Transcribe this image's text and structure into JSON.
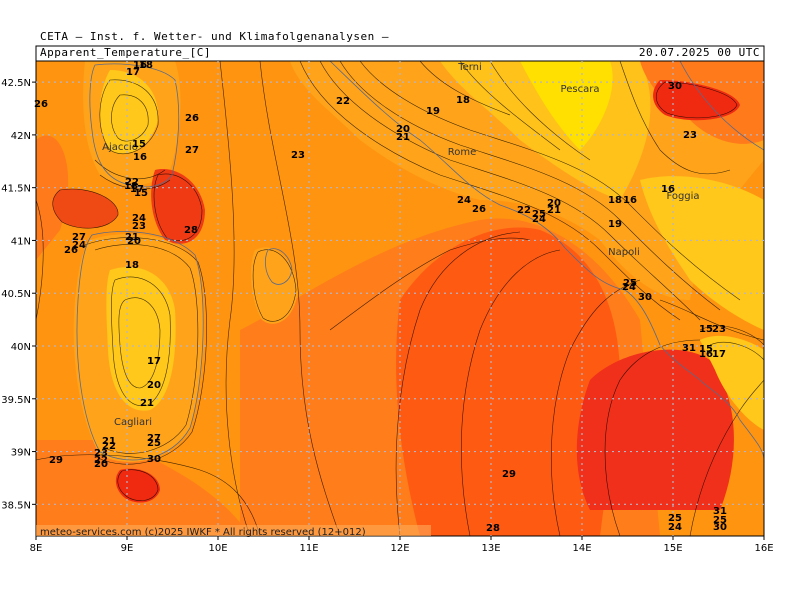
{
  "header": {
    "institute": "CETA — Inst. f. Wetter- und Klimafolgenanalysen —",
    "title": "Apparent_Temperature_[C]",
    "datetime": "20.07.2025 00 UTC"
  },
  "map": {
    "x_ticks": [
      "8E",
      "9E",
      "10E",
      "11E",
      "12E",
      "13E",
      "14E",
      "15E",
      "16E"
    ],
    "y_ticks": [
      "42.5N",
      "42N",
      "41.5N",
      "41N",
      "40.5N",
      "40N",
      "39.5N",
      "39N",
      "38.5N"
    ],
    "lon_range": [
      8,
      16
    ],
    "lat_range": [
      38.2,
      42.7
    ],
    "cities": [
      "Terni",
      "Pescara",
      "Rome",
      "Ajaccio",
      "Napoli",
      "Foggia",
      "Cagliari"
    ],
    "credit": "meteo-services.com  (c)2025 IWKF * All rights reserved (12+012)",
    "contour_labels": [
      "26",
      "17",
      "16",
      "18",
      "22",
      "19",
      "20",
      "21",
      "18",
      "30",
      "23",
      "26",
      "27",
      "15",
      "16",
      "23",
      "22",
      "18",
      "17",
      "15",
      "24",
      "22",
      "26",
      "24",
      "23",
      "20",
      "21",
      "25",
      "24",
      "18",
      "16",
      "19",
      "28",
      "27",
      "24",
      "26",
      "21",
      "20",
      "18",
      "16",
      "15",
      "23",
      "25",
      "24",
      "30",
      "17",
      "20",
      "21",
      "31",
      "15",
      "16",
      "17",
      "21",
      "22",
      "27",
      "25",
      "23",
      "29",
      "30",
      "22",
      "20",
      "29",
      "28",
      "24",
      "25",
      "30",
      "31",
      "25"
    ],
    "colors": {
      "frame": "#ffa000",
      "warm": "#ff8c00",
      "orange": "#ff7a1a",
      "hot": "#ff4a10",
      "very_hot": "#f02a10",
      "mild": "#ffa500",
      "cool": "#ffc000",
      "cold": "#ffe000",
      "grid": "#b4b4c8"
    }
  }
}
